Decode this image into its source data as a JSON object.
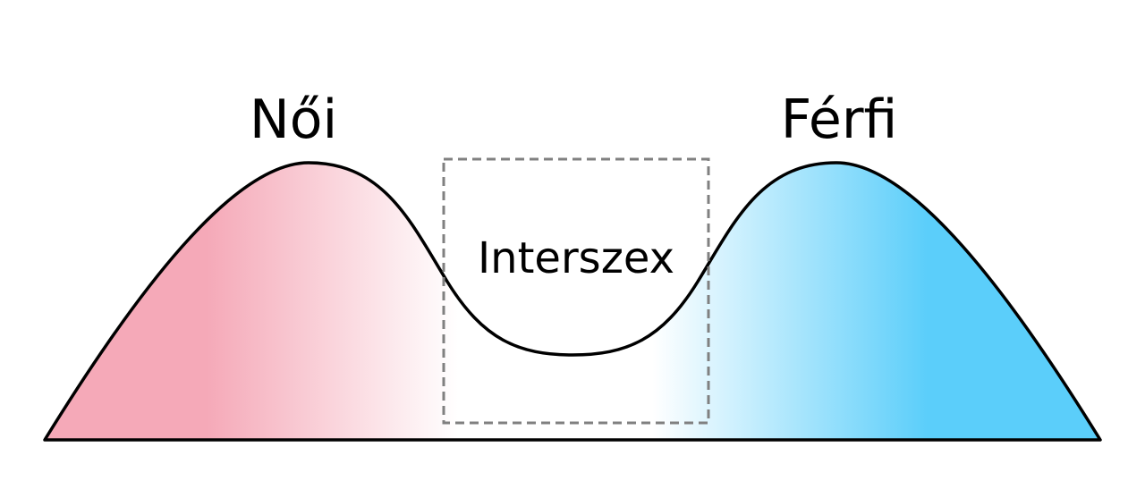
{
  "labels": {
    "female": "Női",
    "male": "Férfi",
    "intersex": "Interszex"
  },
  "colors": {
    "female": "#F5A9B8",
    "male": "#5BCEFA",
    "outline": "#000000",
    "box": "#808080"
  }
}
